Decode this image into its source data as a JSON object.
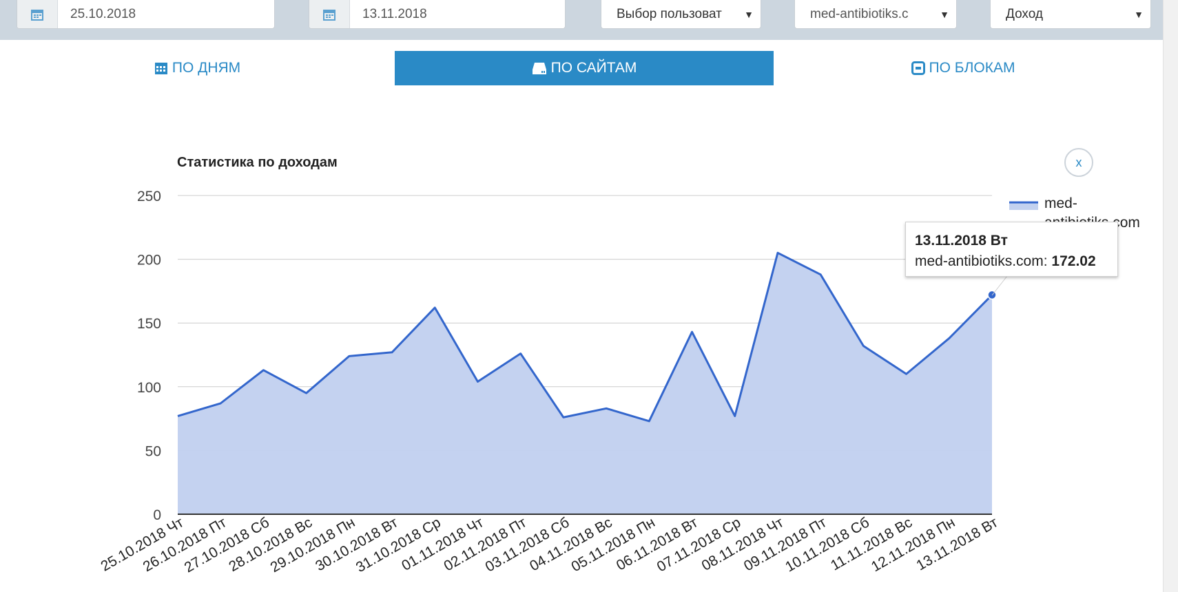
{
  "filters": {
    "date_from": "25.10.2018",
    "date_to": "13.11.2018",
    "user_select": "Выбор пользоват",
    "site_select": "med-antibiotiks.c",
    "metric_select": "Доход"
  },
  "tabs": [
    {
      "label": "ПО ДНЯМ",
      "icon": "calendar-icon",
      "active": false
    },
    {
      "label": "ПО САЙТАМ",
      "icon": "drive-icon",
      "active": true
    },
    {
      "label": "ПО БЛОКАМ",
      "icon": "block-icon",
      "active": false
    }
  ],
  "close_label": "x",
  "tooltip": {
    "date": "13.11.2018 Вт",
    "series": "med-antibiotiks.com:",
    "value": "172.02"
  },
  "colors": {
    "accent": "#2a8ac6",
    "line": "#3366cc",
    "area": "#c2d1ef",
    "filter_bar": "#ccd6df"
  },
  "chart_data": {
    "type": "area",
    "title": "Статистика по доходам",
    "xlabel": "",
    "ylabel": "",
    "ylim": [
      0,
      250
    ],
    "yticks": [
      0,
      50,
      100,
      150,
      200,
      250
    ],
    "grid": true,
    "legend_position": "right",
    "categories": [
      "25.10.2018 Чт",
      "26.10.2018 Пт",
      "27.10.2018 Сб",
      "28.10.2018 Вс",
      "29.10.2018 Пн",
      "30.10.2018 Вт",
      "31.10.2018 Ср",
      "01.11.2018 Чт",
      "02.11.2018 Пт",
      "03.11.2018 Сб",
      "04.11.2018 Вс",
      "05.11.2018 Пн",
      "06.11.2018 Вт",
      "07.11.2018 Ср",
      "08.11.2018 Чт",
      "09.11.2018 Пт",
      "10.11.2018 Сб",
      "11.11.2018 Вс",
      "12.11.2018 Пн",
      "13.11.2018 Вт"
    ],
    "series": [
      {
        "name": "med-antibiotiks.com",
        "values": [
          77,
          87,
          113,
          95,
          124,
          127,
          162,
          104,
          126,
          76,
          83,
          73,
          143,
          77,
          205,
          188,
          132,
          110,
          138,
          172.02
        ]
      }
    ]
  }
}
